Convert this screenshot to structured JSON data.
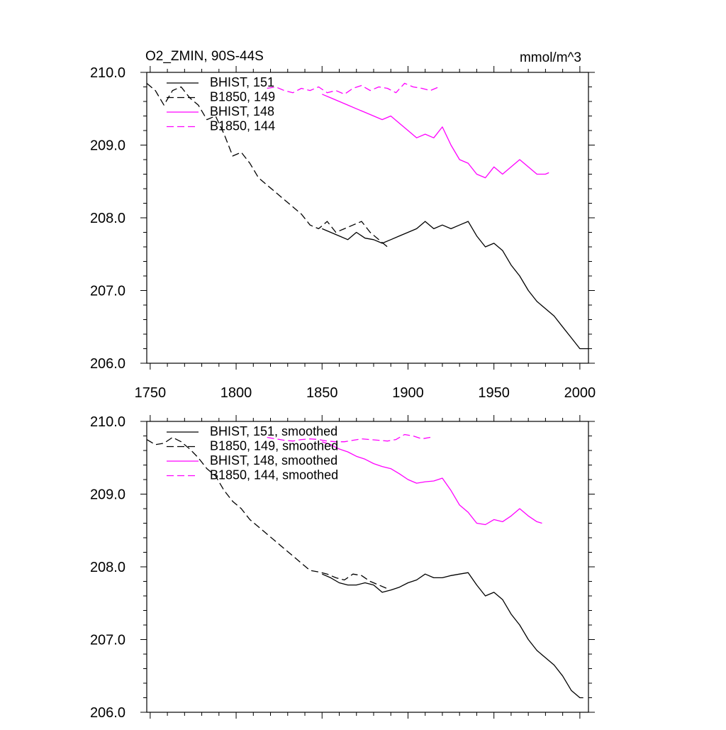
{
  "page": {
    "title_left": "O2_ZMIN, 90S-44S",
    "title_right": "mmol/m^3"
  },
  "colors": {
    "black": "#000000",
    "magenta": "#ff00ff"
  },
  "chart_data": [
    {
      "type": "line",
      "title": "O2_ZMIN, 90S-44S",
      "units": "mmol/m^3",
      "xlim": [
        1748,
        2005
      ],
      "ylim": [
        206.0,
        210.0
      ],
      "x_ticks": [
        "1750",
        "1800",
        "1850",
        "1900",
        "1950",
        "2000"
      ],
      "y_ticks": [
        "206.0",
        "207.0",
        "208.0",
        "209.0",
        "210.0"
      ],
      "series": [
        {
          "name": "BHIST, 151",
          "color": "#000000",
          "dash": "solid",
          "x": [
            1850,
            1855,
            1860,
            1865,
            1870,
            1875,
            1880,
            1885,
            1890,
            1895,
            1900,
            1905,
            1910,
            1915,
            1920,
            1925,
            1930,
            1935,
            1940,
            1945,
            1950,
            1955,
            1960,
            1965,
            1970,
            1975,
            1980,
            1985,
            1990,
            1995,
            2000,
            2005
          ],
          "y": [
            207.85,
            207.8,
            207.75,
            207.7,
            207.8,
            207.72,
            207.7,
            207.65,
            207.7,
            207.75,
            207.8,
            207.85,
            207.95,
            207.85,
            207.9,
            207.85,
            207.9,
            207.95,
            207.75,
            207.6,
            207.65,
            207.55,
            207.35,
            207.2,
            207.0,
            206.85,
            206.75,
            206.65,
            206.5,
            206.35,
            206.2,
            206.2
          ]
        },
        {
          "name": "B1850, 149",
          "color": "#000000",
          "dash": "dashed",
          "x": [
            1748,
            1753,
            1758,
            1763,
            1768,
            1773,
            1778,
            1783,
            1788,
            1793,
            1798,
            1803,
            1808,
            1813,
            1818,
            1823,
            1828,
            1833,
            1838,
            1843,
            1848,
            1853,
            1858,
            1863,
            1868,
            1873,
            1878,
            1883,
            1888
          ],
          "y": [
            209.85,
            209.75,
            209.55,
            209.75,
            209.8,
            209.65,
            209.55,
            209.35,
            209.4,
            209.15,
            208.85,
            208.9,
            208.75,
            208.55,
            208.45,
            208.35,
            208.25,
            208.15,
            208.05,
            207.9,
            207.85,
            207.95,
            207.8,
            207.85,
            207.9,
            207.95,
            207.8,
            207.7,
            207.6
          ]
        },
        {
          "name": "BHIST, 148",
          "color": "#ff00ff",
          "dash": "solid",
          "x": [
            1850,
            1855,
            1860,
            1865,
            1870,
            1875,
            1880,
            1885,
            1890,
            1895,
            1900,
            1905,
            1910,
            1915,
            1920,
            1925,
            1930,
            1935,
            1940,
            1945,
            1950,
            1955,
            1960,
            1965,
            1970,
            1975,
            1980,
            1982
          ],
          "y": [
            209.7,
            209.65,
            209.6,
            209.55,
            209.5,
            209.45,
            209.4,
            209.35,
            209.4,
            209.3,
            209.2,
            209.1,
            209.15,
            209.1,
            209.25,
            209.0,
            208.8,
            208.75,
            208.6,
            208.55,
            208.7,
            208.6,
            208.7,
            208.8,
            208.7,
            208.6,
            208.6,
            208.62
          ]
        },
        {
          "name": "B1850, 144",
          "color": "#ff00ff",
          "dash": "dashed",
          "x": [
            1818,
            1823,
            1828,
            1833,
            1838,
            1843,
            1848,
            1853,
            1858,
            1863,
            1868,
            1873,
            1878,
            1883,
            1888,
            1893,
            1898,
            1903,
            1908,
            1913,
            1918
          ],
          "y": [
            209.78,
            209.8,
            209.75,
            209.72,
            209.78,
            209.75,
            209.8,
            209.72,
            209.75,
            209.7,
            209.78,
            209.82,
            209.75,
            209.8,
            209.78,
            209.72,
            209.85,
            209.8,
            209.78,
            209.75,
            209.8
          ]
        }
      ]
    },
    {
      "type": "line",
      "xlim": [
        1748,
        2005
      ],
      "ylim": [
        206.0,
        210.0
      ],
      "y_ticks": [
        "206.0",
        "207.0",
        "208.0",
        "209.0",
        "210.0"
      ],
      "series": [
        {
          "name": "BHIST, 151, smoothed",
          "color": "#000000",
          "dash": "solid",
          "x": [
            1850,
            1855,
            1860,
            1865,
            1870,
            1875,
            1880,
            1885,
            1890,
            1895,
            1900,
            1905,
            1910,
            1915,
            1920,
            1925,
            1930,
            1935,
            1940,
            1945,
            1950,
            1955,
            1960,
            1965,
            1970,
            1975,
            1980,
            1985,
            1990,
            1995,
            2000,
            2002
          ],
          "y": [
            207.9,
            207.85,
            207.78,
            207.75,
            207.75,
            207.78,
            207.75,
            207.65,
            207.68,
            207.72,
            207.78,
            207.82,
            207.9,
            207.85,
            207.85,
            207.88,
            207.9,
            207.92,
            207.75,
            207.6,
            207.65,
            207.55,
            207.35,
            207.2,
            207.0,
            206.85,
            206.75,
            206.65,
            206.5,
            206.3,
            206.2,
            206.2
          ]
        },
        {
          "name": "B1850, 149, smoothed",
          "color": "#000000",
          "dash": "dashed",
          "x": [
            1748,
            1753,
            1758,
            1763,
            1768,
            1773,
            1778,
            1783,
            1788,
            1793,
            1798,
            1803,
            1808,
            1813,
            1818,
            1823,
            1828,
            1833,
            1838,
            1843,
            1848,
            1853,
            1858,
            1863,
            1868,
            1873,
            1878,
            1883,
            1888
          ],
          "y": [
            209.75,
            209.68,
            209.7,
            209.78,
            209.72,
            209.62,
            209.5,
            209.35,
            209.25,
            209.05,
            208.9,
            208.8,
            208.65,
            208.55,
            208.45,
            208.35,
            208.25,
            208.15,
            208.05,
            207.95,
            207.93,
            207.9,
            207.85,
            207.82,
            207.9,
            207.88,
            207.8,
            207.75,
            207.7
          ]
        },
        {
          "name": "BHIST, 148, smoothed",
          "color": "#ff00ff",
          "dash": "solid",
          "x": [
            1850,
            1855,
            1860,
            1865,
            1870,
            1875,
            1880,
            1885,
            1890,
            1895,
            1900,
            1905,
            1910,
            1915,
            1920,
            1925,
            1930,
            1935,
            1940,
            1945,
            1950,
            1955,
            1960,
            1965,
            1970,
            1975,
            1978
          ],
          "y": [
            209.72,
            209.68,
            209.62,
            209.58,
            209.52,
            209.48,
            209.42,
            209.38,
            209.35,
            209.28,
            209.2,
            209.15,
            209.17,
            209.18,
            209.22,
            209.05,
            208.85,
            208.75,
            208.6,
            208.58,
            208.65,
            208.62,
            208.7,
            208.8,
            208.7,
            208.62,
            208.6
          ]
        },
        {
          "name": "B1850, 144, smoothed",
          "color": "#ff00ff",
          "dash": "dashed",
          "x": [
            1818,
            1823,
            1828,
            1833,
            1838,
            1843,
            1848,
            1853,
            1858,
            1863,
            1868,
            1873,
            1878,
            1883,
            1888,
            1893,
            1898,
            1903,
            1908,
            1913
          ],
          "y": [
            209.78,
            209.76,
            209.74,
            209.73,
            209.75,
            209.76,
            209.75,
            209.73,
            209.72,
            209.72,
            209.74,
            209.76,
            209.75,
            209.74,
            209.73,
            209.75,
            209.82,
            209.8,
            209.76,
            209.78
          ]
        }
      ]
    }
  ]
}
